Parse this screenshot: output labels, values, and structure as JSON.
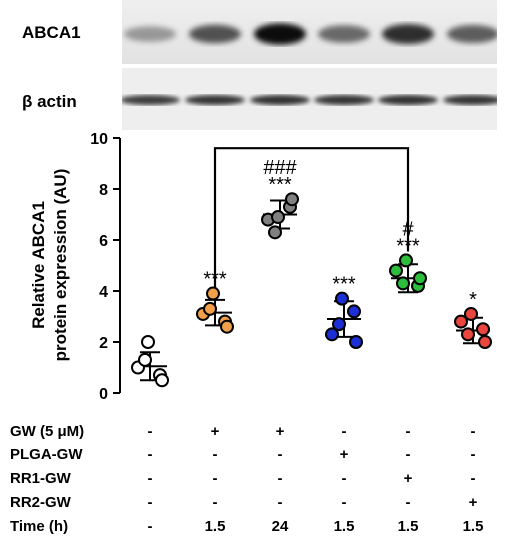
{
  "blot": {
    "top_label": "ABCA1",
    "bottom_label": "β actin",
    "abca1_intensity": [
      0.35,
      0.65,
      0.95,
      0.55,
      0.8,
      0.6
    ],
    "actin_intensity": [
      0.75,
      0.78,
      0.8,
      0.78,
      0.8,
      0.78
    ]
  },
  "chart_data": {
    "type": "scatter",
    "ylabel_line1": "Relative ABCA1",
    "ylabel_line2": "protein expression  (AU)",
    "ylim": [
      0,
      10
    ],
    "yticks": [
      0,
      2,
      4,
      6,
      8,
      10
    ],
    "groups": [
      {
        "points": [
          1.0,
          0.7,
          1.3,
          0.5,
          2.0
        ],
        "mean": 1.05,
        "sd": 0.55,
        "color": "#ffffff",
        "sig_top": "",
        "sig": ""
      },
      {
        "points": [
          3.1,
          2.8,
          3.3,
          2.6,
          3.9
        ],
        "mean": 3.15,
        "sd": 0.5,
        "color": "#f0a04b",
        "sig_top": "",
        "sig": "***"
      },
      {
        "points": [
          6.8,
          7.3,
          6.3,
          7.6,
          6.9
        ],
        "mean": 7.0,
        "sd": 0.55,
        "color": "#808080",
        "sig_top": "###",
        "sig": "***"
      },
      {
        "points": [
          2.3,
          3.2,
          2.7,
          2.0,
          3.7
        ],
        "mean": 2.9,
        "sd": 0.7,
        "color": "#1c2fd6",
        "sig_top": "",
        "sig": "***"
      },
      {
        "points": [
          4.8,
          4.2,
          4.3,
          4.5,
          5.2
        ],
        "mean": 4.5,
        "sd": 0.55,
        "color": "#2dbd3c",
        "sig_top": "#",
        "sig": "***"
      },
      {
        "points": [
          2.8,
          2.5,
          2.3,
          2.0,
          3.1
        ],
        "mean": 2.45,
        "sd": 0.5,
        "color": "#e8463f",
        "sig_top": "",
        "sig": "*"
      }
    ],
    "bracket": {
      "from_group": 1,
      "to_group": 4,
      "y": 9.6
    }
  },
  "conditions": {
    "rows": [
      {
        "label": "GW (5 μM)",
        "values": [
          "-",
          "+",
          "+",
          "-",
          "-",
          "-"
        ]
      },
      {
        "label": "PLGA-GW",
        "values": [
          "-",
          "-",
          "-",
          "+",
          "-",
          "-"
        ]
      },
      {
        "label": "RR1-GW",
        "values": [
          "-",
          "-",
          "-",
          "-",
          "+",
          "-"
        ]
      },
      {
        "label": "RR2-GW",
        "values": [
          "-",
          "-",
          "-",
          "-",
          "-",
          "+"
        ]
      },
      {
        "label": "Time (h)",
        "values": [
          "-",
          "1.5",
          "24",
          "1.5",
          "1.5",
          "1.5"
        ]
      }
    ]
  }
}
